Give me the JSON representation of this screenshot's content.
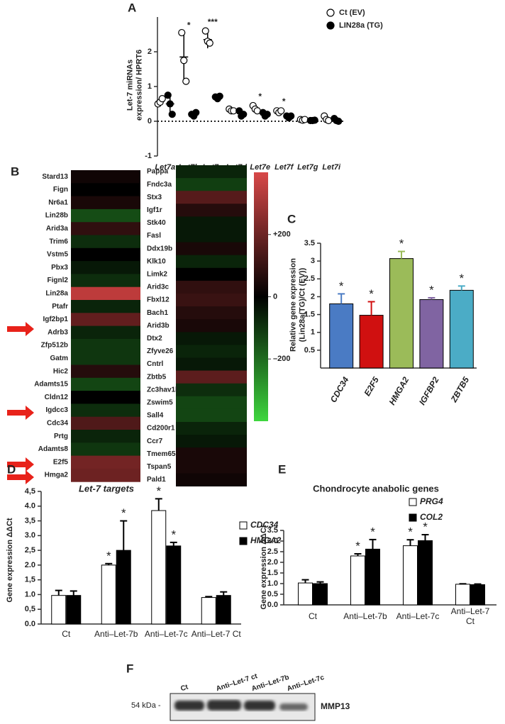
{
  "chart_data": [
    {
      "panel": "A",
      "type": "dot",
      "y_label": "Let-7 miRNAs\nexpression/ HPRT6",
      "categories": [
        "Let7a",
        "Let7b",
        "Let7c",
        "Let7d",
        "Let7e",
        "Let7f",
        "Let7g",
        "Let7i"
      ],
      "ylim": [
        -1,
        3
      ],
      "yticks": [
        -1,
        0,
        1,
        2
      ],
      "series": [
        {
          "name": "Ct (EV)",
          "color": "#ffffff",
          "values": [
            0.57,
            1.85,
            2.35,
            0.32,
            0.38,
            0.28,
            0.04,
            0.07
          ],
          "errors": [
            0.08,
            0.65,
            0.25,
            0.04,
            0.07,
            0.03,
            0.01,
            0.06
          ],
          "points": [
            [
              0.5,
              0.55,
              0.65
            ],
            [
              2.55,
              1.75,
              1.15
            ],
            [
              2.6,
              2.3,
              2.25
            ],
            [
              0.35,
              0.3,
              0.3
            ],
            [
              0.45,
              0.35,
              0.3
            ],
            [
              0.3,
              0.25,
              0.3
            ],
            [
              0.05,
              0.03,
              0.05
            ],
            [
              0.15,
              0.05,
              0.02
            ]
          ]
        },
        {
          "name": "LIN28a (TG)",
          "color": "#000000",
          "values": [
            0.5,
            0.2,
            0.7,
            0.22,
            0.2,
            0.13,
            0.02,
            0.03
          ],
          "errors": [
            0.25,
            0.04,
            0.03,
            0.07,
            0.04,
            0.03,
            0.01,
            0.04
          ],
          "points": [
            [
              0.75,
              0.5,
              0.2
            ],
            [
              0.2,
              0.15,
              0.25
            ],
            [
              0.7,
              0.65,
              0.72
            ],
            [
              0.3,
              0.15,
              0.2
            ],
            [
              0.25,
              0.15,
              0.2
            ],
            [
              0.15,
              0.1,
              0.15
            ],
            [
              0.02,
              0.02,
              0.03
            ],
            [
              0.08,
              0.02,
              0.0
            ]
          ],
          "significance": [
            null,
            "*",
            "***",
            null,
            "*",
            "*",
            null,
            null
          ]
        }
      ]
    },
    {
      "panel": "B",
      "type": "heatmap",
      "columns": [
        {
          "genes": [
            "Stard13",
            "Fign",
            "Nr6a1",
            "Lin28b",
            "Arid3a",
            "Trim6",
            "Vstm5",
            "Pbx3",
            "Fignl2",
            "Lin28a",
            "Ptafr",
            "Igf2bp1",
            "Adrb3",
            "Zfp512b",
            "Gatm",
            "Hic2",
            "Adamts15",
            "Cldn12",
            "Igdcc3",
            "Cdc34",
            "Prtg",
            "Adamts8",
            "E2f5",
            "Hmga2"
          ],
          "values": [
            5,
            0,
            10,
            -70,
            30,
            -30,
            0,
            -10,
            -30,
            300,
            -20,
            100,
            -20,
            -40,
            -40,
            20,
            -60,
            0,
            -30,
            70,
            -20,
            -40,
            130,
            120
          ]
        },
        {
          "genes": [
            "Pappa",
            "Fndc3a",
            "Stx3",
            "Igf1r",
            "Stk40",
            "Fasl",
            "Ddx19b",
            "Klk10",
            "Limk2",
            "Arid3c",
            "Fbxl12",
            "Bach1",
            "Arid3b",
            "Dtx2",
            "Zfyve26",
            "Cntrl",
            "Zbtb5",
            "Zc3hav1l",
            "Zswim5",
            "Sall4",
            "Cd200r1",
            "Ccr7",
            "Tmem65",
            "Tspan5",
            "Pald1"
          ],
          "values": [
            -20,
            -50,
            80,
            20,
            -10,
            -10,
            10,
            -20,
            0,
            30,
            40,
            20,
            10,
            -10,
            -20,
            -10,
            90,
            -30,
            -60,
            -60,
            -20,
            -10,
            10,
            10,
            5
          ]
        }
      ],
      "zlim": [
        -400,
        400
      ],
      "zticks": [
        {
          "value": 200,
          "label": "+200"
        },
        0,
        {
          "value": -200,
          "label": "–200"
        }
      ]
    },
    {
      "panel": "C",
      "type": "bar",
      "y_label": "Relative gene expression\n(Lin28a(TG)/Ct (EV))",
      "categories": [
        "CDC34",
        "E2F5",
        "HMGA2",
        "IGFBP2",
        "ZBTB5"
      ],
      "values": [
        1.8,
        1.48,
        3.07,
        1.92,
        2.18
      ],
      "errors": [
        0.28,
        0.38,
        0.2,
        0.05,
        0.12
      ],
      "colors": [
        "#4a7bc4",
        "#d01010",
        "#9bbb59",
        "#8064a2",
        "#4bacc6"
      ],
      "significance": [
        "*",
        "*",
        "*",
        "*",
        "*"
      ],
      "ylim": [
        0,
        3.5
      ],
      "yticks": [
        0.5,
        1,
        1.5,
        2,
        2.5,
        3,
        3.5
      ]
    },
    {
      "panel": "D",
      "type": "bar",
      "title": "Let-7 targets",
      "y_label": "Gene expression ΔΔCt",
      "categories": [
        "Ct",
        "Anti–Let-7b",
        "Anti–Let-7c",
        "Anti–Let-7  Ct"
      ],
      "ylim": [
        0,
        4.5
      ],
      "yticks": [
        {
          "value": 0,
          "label": "0.0"
        },
        {
          "value": 0.5,
          "label": "0,5"
        },
        {
          "value": 1,
          "label": "1.0"
        },
        {
          "value": 1.5,
          "label": "1,5"
        },
        {
          "value": 2,
          "label": "2.0"
        },
        {
          "value": 2.5,
          "label": "2,5"
        },
        {
          "value": 3,
          "label": "3.0"
        },
        {
          "value": 3.5,
          "label": "3,5"
        },
        {
          "value": 4,
          "label": "4.0"
        },
        {
          "value": 4.5,
          "label": "4,5"
        }
      ],
      "series": [
        {
          "name": "CDC34",
          "color": "#ffffff",
          "values": [
            0.97,
            2.0,
            3.85,
            0.9
          ],
          "errors": [
            0.17,
            0.05,
            0.4,
            0.03
          ],
          "significance": [
            null,
            "*",
            "*",
            null
          ]
        },
        {
          "name": "HMGA2",
          "color": "#000000",
          "values": [
            0.97,
            2.5,
            2.65,
            0.97
          ],
          "errors": [
            0.15,
            1.0,
            0.12,
            0.12
          ],
          "significance": [
            null,
            "*",
            "*",
            null
          ]
        }
      ]
    },
    {
      "panel": "E",
      "type": "bar",
      "title": "Chondrocyte anabolic genes",
      "y_label": "Gene expression ΔΔCt",
      "categories": [
        "Ct",
        "Anti–Let-7b",
        "Anti–Let-7c",
        "Anti–Let-7\nCt"
      ],
      "ylim": [
        0,
        3.5
      ],
      "yticks": [
        {
          "value": 0,
          "label": "0.0"
        },
        0.5,
        {
          "value": 1,
          "label": "1.0"
        },
        1.5,
        {
          "value": 2,
          "label": "2.0"
        },
        2.5,
        {
          "value": 3,
          "label": "3.0"
        },
        3.5
      ],
      "series": [
        {
          "name": "PRG4",
          "color": "#ffffff",
          "values": [
            1.03,
            2.3,
            2.78,
            0.97
          ],
          "errors": [
            0.15,
            0.1,
            0.28,
            0.02
          ],
          "significance": [
            null,
            "*",
            "*",
            null
          ]
        },
        {
          "name": "COL2",
          "color": "#000000",
          "values": [
            1.0,
            2.62,
            3.02,
            0.95
          ],
          "errors": [
            0.08,
            0.45,
            0.28,
            0.03
          ],
          "significance": [
            null,
            "*",
            "*",
            null
          ]
        }
      ]
    }
  ],
  "blot": {
    "panel": "F",
    "lanes": [
      "Ct",
      "Anti–Let-7 ct",
      "Anti–Let-7b",
      "Anti–Let-7c"
    ],
    "marker": "54 kDa -",
    "protein": "MMP13"
  }
}
